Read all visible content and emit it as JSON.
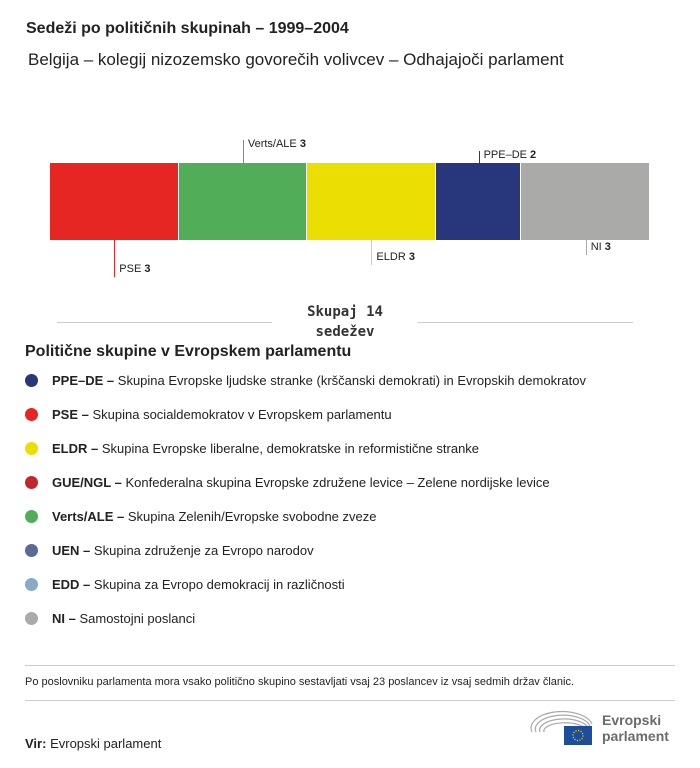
{
  "title": "Sedeži po političnih skupinah – 1999–2004",
  "subtitle": "Belgija – kolegij nizozemsko govorečih volivcev – Odhajajoči parlament",
  "chart_data": {
    "type": "bar",
    "stacked": true,
    "categories": [
      "PSE",
      "Verts/ALE",
      "ELDR",
      "PPE-DE",
      "NI"
    ],
    "values": [
      3,
      3,
      3,
      2,
      3
    ],
    "colors": [
      "#e52623",
      "#52ad58",
      "#eadf00",
      "#28367c",
      "#aaaaa9"
    ],
    "total": 14
  },
  "total_label": {
    "line1": "Skupaj 14",
    "line2": "sedežev"
  },
  "legend": {
    "title": "Politične skupine v Evropskem parlamentu",
    "items": [
      {
        "abbr": "PPE–DE –",
        "desc": "Skupina Evropske ljudske stranke (krščanski demokrati) in Evropskih demokratov",
        "color": "#28367c"
      },
      {
        "abbr": "PSE –",
        "desc": "Skupina socialdemokratov v Evropskem parlamentu",
        "color": "#e52623"
      },
      {
        "abbr": "ELDR –",
        "desc": "Skupina Evropske liberalne, demokratske in reformistične stranke",
        "color": "#eadf00"
      },
      {
        "abbr": "GUE/NGL –",
        "desc": "Konfederalna skupina Evropske združene levice – Zelene nordijske levice",
        "color": "#c1272d"
      },
      {
        "abbr": "Verts/ALE –",
        "desc": "Skupina Zelenih/Evropske svobodne zveze",
        "color": "#52ad58"
      },
      {
        "abbr": "UEN –",
        "desc": "Skupina združenje za Evropo narodov",
        "color": "#5a6a98"
      },
      {
        "abbr": "EDD –",
        "desc": "Skupina za Evropo demokracij in različnosti",
        "color": "#88aac4"
      },
      {
        "abbr": "NI –",
        "desc": "Samostojni poslanci",
        "color": "#aaaaa9"
      }
    ]
  },
  "note": "Po poslovniku parlamenta mora vsako politično skupino sestavljati vsaj 23 poslancev iz vsaj sedmih držav članic.",
  "source": {
    "label": "Vir:",
    "value": "Evropski parlament"
  },
  "logo": {
    "line1": "Evropski",
    "line2": "parlament"
  }
}
